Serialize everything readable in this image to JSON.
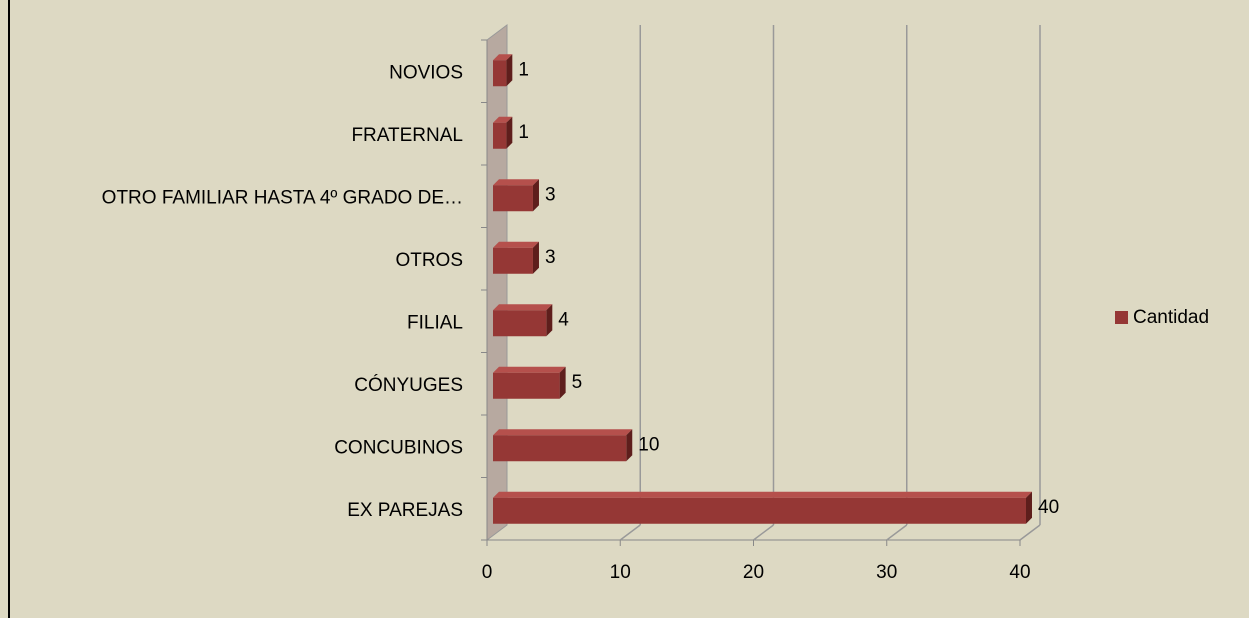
{
  "chart_data": {
    "type": "bar3d_horizontal",
    "categories": [
      "NOVIOS",
      "FRATERNAL",
      "OTRO FAMILIAR HASTA 4º GRADO DE…",
      "OTROS",
      "FILIAL",
      "CÓNYUGES",
      "CONCUBINOS",
      "EX PAREJAS"
    ],
    "series": [
      {
        "name": "Cantidad",
        "color": "#953735",
        "values": [
          1,
          1,
          3,
          3,
          4,
          5,
          10,
          40
        ]
      }
    ],
    "xlim": [
      0,
      40
    ],
    "xticks": [
      0,
      10,
      20,
      30,
      40
    ],
    "grid": true,
    "legend": "right"
  }
}
